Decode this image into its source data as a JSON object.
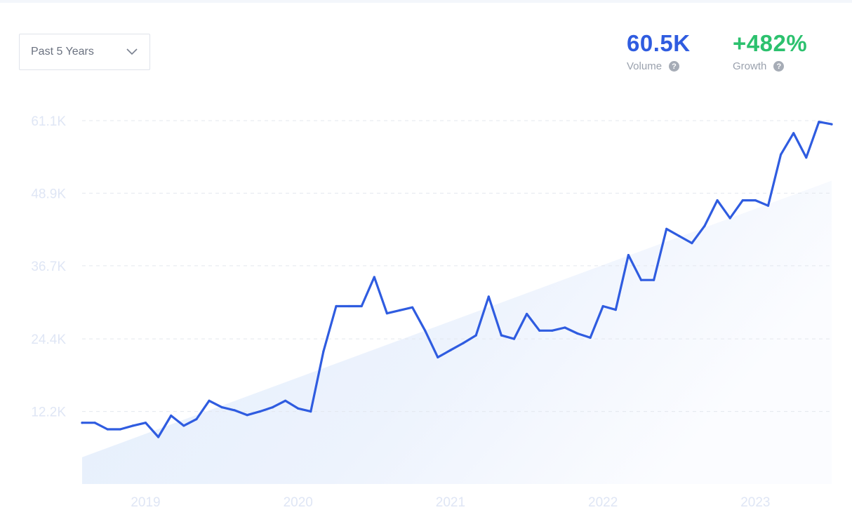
{
  "range": {
    "label": "Past 5 Years",
    "icon": "chevron-down-icon"
  },
  "metrics": {
    "volume": {
      "value": "60.5K",
      "label": "Volume"
    },
    "growth": {
      "value": "+482%",
      "label": "Growth"
    },
    "help_glyph": "?"
  },
  "colors": {
    "line": "#2f5ce0",
    "trend_fill": "#e3eefc",
    "growth": "#2cc16e",
    "axis_text": "#dfe6f5"
  },
  "chart_data": {
    "type": "line",
    "title": "",
    "xlabel": "",
    "ylabel": "",
    "x_ticks": [
      "2019",
      "2020",
      "2021",
      "2022",
      "2023"
    ],
    "y_ticks": [
      {
        "value": 12200,
        "label": "12.2K"
      },
      {
        "value": 24400,
        "label": "24.4K"
      },
      {
        "value": 36700,
        "label": "36.7K"
      },
      {
        "value": 48900,
        "label": "48.9K"
      },
      {
        "value": 61100,
        "label": "61.1K"
      }
    ],
    "ylim": [
      0,
      61100
    ],
    "xlim": [
      "2018-08",
      "2023-07"
    ],
    "grid": true,
    "series": [
      {
        "x": [
          "2018-08",
          "2018-09",
          "2018-10",
          "2018-11",
          "2018-12",
          "2019-01",
          "2019-02",
          "2019-03",
          "2019-04",
          "2019-05",
          "2019-06",
          "2019-07",
          "2019-08",
          "2019-09",
          "2019-10",
          "2019-11",
          "2019-12",
          "2020-01",
          "2020-02",
          "2020-03",
          "2020-04",
          "2020-05",
          "2020-06",
          "2020-07",
          "2020-08",
          "2020-09",
          "2020-10",
          "2020-11",
          "2020-12",
          "2021-01",
          "2021-02",
          "2021-03",
          "2021-04",
          "2021-05",
          "2021-06",
          "2021-07",
          "2021-08",
          "2021-09",
          "2021-10",
          "2021-11",
          "2021-12",
          "2022-01",
          "2022-02",
          "2022-03",
          "2022-04",
          "2022-05",
          "2022-06",
          "2022-07",
          "2022-08",
          "2022-09",
          "2022-10",
          "2022-11",
          "2022-12",
          "2023-01",
          "2023-02",
          "2023-03",
          "2023-04",
          "2023-05",
          "2023-06",
          "2023-07"
        ],
        "values": [
          10300,
          10300,
          9200,
          9200,
          9800,
          10300,
          7900,
          11500,
          9800,
          10900,
          14000,
          12900,
          12400,
          11600,
          12200,
          12900,
          14000,
          12700,
          12200,
          22300,
          29900,
          29900,
          29900,
          34800,
          28700,
          29200,
          29700,
          25800,
          21300,
          22500,
          23700,
          25000,
          31500,
          25000,
          24400,
          28600,
          25800,
          25800,
          26300,
          25300,
          24600,
          29900,
          29300,
          38500,
          34300,
          34300,
          42900,
          41700,
          40500,
          43400,
          47700,
          44700,
          47700,
          47700,
          46800,
          55400,
          59000,
          54900,
          60900,
          60500
        ]
      }
    ],
    "trend": {
      "start": 4500,
      "end": 51000
    }
  }
}
